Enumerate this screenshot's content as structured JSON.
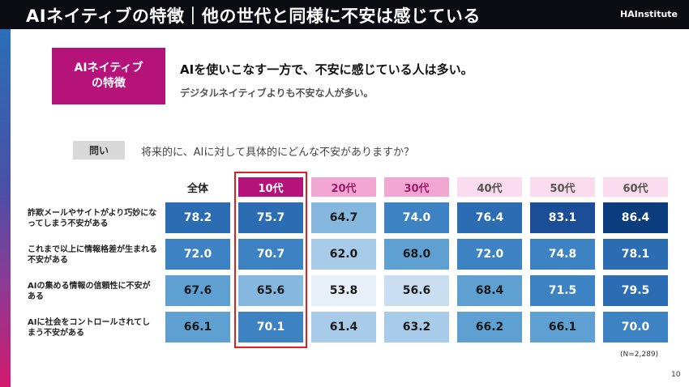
{
  "title": "AIネイティブの特徴｜他の世代と同様に不安は感じている",
  "logo": {
    "prefix": "H",
    "middle": "AI",
    "suffix": "nstitute"
  },
  "badge": {
    "line1": "AIネイティブ",
    "line2": "の特徴",
    "color": "#b5137a"
  },
  "headline": "AIを使いこなす一方で、不安に感じている人は多い。",
  "subheadline": "デジタルネイティブよりも不安な人が多い。",
  "question": {
    "label": "問い",
    "text": "将来的に、AIに対して具体的にどんな不安がありますか？"
  },
  "columns": [
    {
      "label": "全体",
      "bg": "#ffffff",
      "fg": "#222222"
    },
    {
      "label": "10代",
      "bg": "#b5137a",
      "fg": "#ffffff"
    },
    {
      "label": "20代",
      "bg": "#f2a7d3",
      "fg": "#a01a6a"
    },
    {
      "label": "30代",
      "bg": "#f2a7d3",
      "fg": "#a01a6a"
    },
    {
      "label": "40代",
      "bg": "#fbdcee",
      "fg": "#555555"
    },
    {
      "label": "50代",
      "bg": "#fbdcee",
      "fg": "#555555"
    },
    {
      "label": "60代",
      "bg": "#fbdcee",
      "fg": "#555555"
    }
  ],
  "rows": [
    {
      "label": "詐欺メールやサイトがより巧妙になってしまう不安がある",
      "values": [
        "78.2",
        "75.7",
        "64.7",
        "74.0",
        "76.4",
        "83.1",
        "86.4"
      ]
    },
    {
      "label": "これまで以上に情報格差が生まれる不安がある",
      "values": [
        "72.0",
        "70.7",
        "62.0",
        "68.0",
        "72.0",
        "74.8",
        "78.1"
      ]
    },
    {
      "label": "AIの集める情報の信頼性に不安がある",
      "values": [
        "67.6",
        "65.6",
        "53.8",
        "56.6",
        "68.4",
        "71.5",
        "79.5"
      ]
    },
    {
      "label": "AIに社会をコントロールされてしまう不安がある",
      "values": [
        "66.1",
        "70.1",
        "61.4",
        "63.2",
        "66.2",
        "66.1",
        "70.0"
      ]
    }
  ],
  "note": "(N=2,289)",
  "page_number": "10"
}
